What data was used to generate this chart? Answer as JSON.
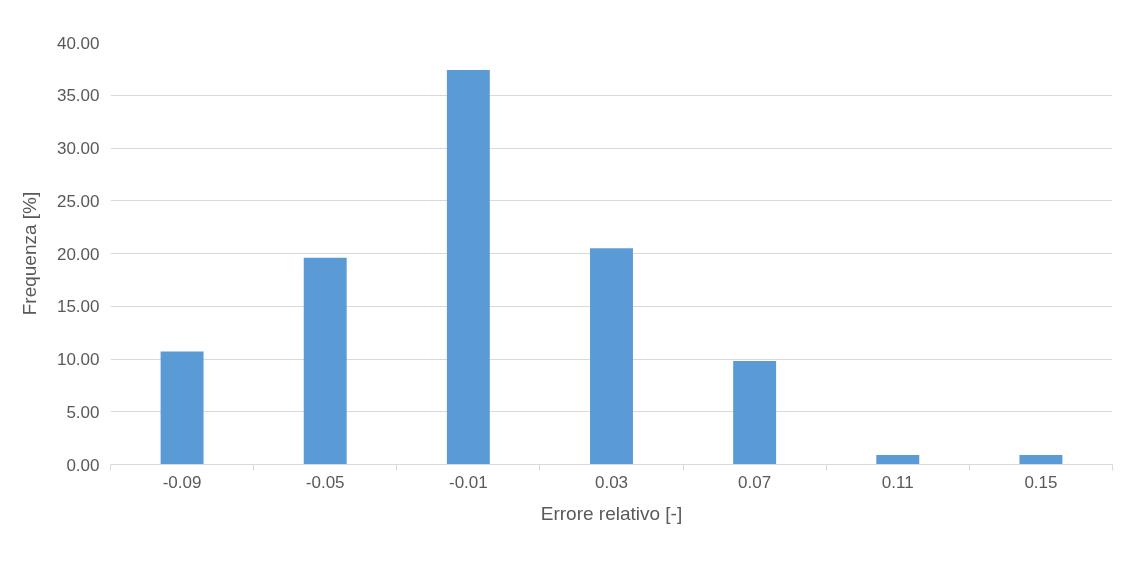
{
  "chart_data": {
    "type": "bar",
    "xlabel": "Errore relativo [-]",
    "ylabel": "Frequenza [%]",
    "categories": [
      "-0.09",
      "-0.05",
      "-0.01",
      "0.03",
      "0.07",
      "0.11",
      "0.15"
    ],
    "values": [
      10.7,
      19.6,
      37.4,
      20.5,
      9.8,
      0.9,
      0.9
    ],
    "color": "#5b9bd5",
    "ylim": [
      0,
      40
    ],
    "yticks": [
      {
        "value": 0,
        "label": "0.00"
      },
      {
        "value": 5,
        "label": "5.00"
      },
      {
        "value": 10,
        "label": "10.00"
      },
      {
        "value": 15,
        "label": "15.00"
      },
      {
        "value": 20,
        "label": "20.00"
      },
      {
        "value": 25,
        "label": "25.00"
      },
      {
        "value": 30,
        "label": "30.00"
      },
      {
        "value": 35,
        "label": "35.00"
      },
      {
        "value": 40,
        "label": "40.00"
      }
    ],
    "grid": "y"
  }
}
